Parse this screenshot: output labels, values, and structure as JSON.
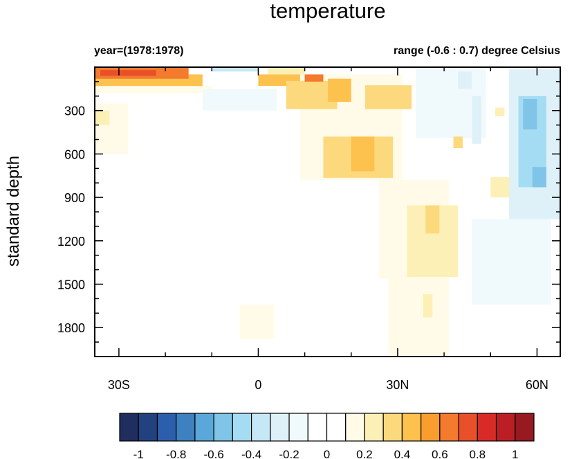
{
  "chart_data": {
    "type": "heatmap",
    "title": "temperature",
    "subtitle_left": "year=(1978:1978)",
    "subtitle_right": "range (-0.6 : 0.7) degree Celsius",
    "ylabel": "standard depth",
    "xlabel": "",
    "xlim": [
      -35.2,
      65
    ],
    "ylim": [
      0,
      2000
    ],
    "y_reversed": true,
    "x_ticks": [
      {
        "value": -30,
        "label": "30S"
      },
      {
        "value": 0,
        "label": "0"
      },
      {
        "value": 30,
        "label": "30N"
      },
      {
        "value": 60,
        "label": "60N"
      }
    ],
    "y_ticks": [
      {
        "value": 300,
        "label": "300"
      },
      {
        "value": 600,
        "label": "600"
      },
      {
        "value": 900,
        "label": "900"
      },
      {
        "value": 1200,
        "label": "1200"
      },
      {
        "value": 1500,
        "label": "1500"
      },
      {
        "value": 1800,
        "label": "1800"
      }
    ],
    "colorbar": {
      "levels": [
        -1,
        -0.9,
        -0.8,
        -0.7,
        -0.6,
        -0.5,
        -0.4,
        -0.3,
        -0.2,
        -0.1,
        0,
        0.1,
        0.2,
        0.3,
        0.4,
        0.5,
        0.6,
        0.7,
        0.8,
        0.9,
        1
      ],
      "labels": [
        "-1",
        "-0.8",
        "-0.6",
        "-0.4",
        "-0.2",
        "0",
        "0.2",
        "0.4",
        "0.6",
        "0.8",
        "1"
      ],
      "colors": [
        "#1f2d5f",
        "#22427f",
        "#2b5fab",
        "#3f80c0",
        "#5aa8da",
        "#80c4e8",
        "#a4dcf4",
        "#c6e8f6",
        "#dff1f8",
        "#f0f9fc",
        "#ffffff",
        "#ffffff",
        "#fffbe8",
        "#fdf0b6",
        "#fdd97e",
        "#fdc14e",
        "#f99d2e",
        "#f47a2e",
        "#e8502a",
        "#d82b27",
        "#bb1f25",
        "#961a1f"
      ]
    },
    "patches_lat0_lat1_depth0_depth1_value": [
      [
        -35.2,
        -10,
        130,
        180,
        0.15
      ],
      [
        -35.2,
        -12,
        50,
        130,
        0.45
      ],
      [
        -35.2,
        -15,
        0,
        80,
        0.6
      ],
      [
        -34,
        -22,
        20,
        60,
        0.7
      ],
      [
        -10,
        0,
        0,
        30,
        -0.4
      ],
      [
        -35.2,
        -28,
        250,
        600,
        0.15
      ],
      [
        -35.2,
        -32,
        300,
        400,
        0.25
      ],
      [
        0,
        12,
        50,
        130,
        0.4
      ],
      [
        2,
        10,
        0,
        50,
        0.25
      ],
      [
        -12,
        4,
        150,
        300,
        -0.15
      ],
      [
        9,
        31,
        50,
        780,
        0.15
      ],
      [
        6,
        17,
        95,
        290,
        0.35
      ],
      [
        15,
        20,
        80,
        240,
        0.45
      ],
      [
        10,
        14,
        50,
        100,
        0.6
      ],
      [
        23,
        33,
        125,
        290,
        0.3
      ],
      [
        14,
        29,
        480,
        765,
        0.3
      ],
      [
        20,
        25,
        480,
        720,
        0.4
      ],
      [
        26,
        41,
        780,
        1460,
        0.15
      ],
      [
        28,
        41,
        1460,
        1990,
        0.15
      ],
      [
        32,
        43,
        955,
        1450,
        0.25
      ],
      [
        36,
        39,
        955,
        1150,
        0.35
      ],
      [
        35.5,
        37.5,
        1570,
        1730,
        0.25
      ],
      [
        -4,
        3.4,
        1640,
        1880,
        0.15
      ],
      [
        34,
        49,
        15,
        490,
        -0.15
      ],
      [
        43,
        46,
        30,
        150,
        -0.3
      ],
      [
        46,
        48,
        200,
        530,
        -0.25
      ],
      [
        42,
        44,
        480,
        560,
        0.35
      ],
      [
        51,
        53,
        280,
        340,
        0.25
      ],
      [
        50,
        55,
        760,
        900,
        0.25
      ],
      [
        46,
        63,
        1050,
        1640,
        -0.15
      ],
      [
        54,
        65,
        15,
        1050,
        -0.3
      ],
      [
        56,
        62,
        200,
        830,
        -0.45
      ],
      [
        57,
        60,
        220,
        430,
        -0.6
      ],
      [
        59,
        62,
        690,
        830,
        -0.55
      ]
    ]
  }
}
